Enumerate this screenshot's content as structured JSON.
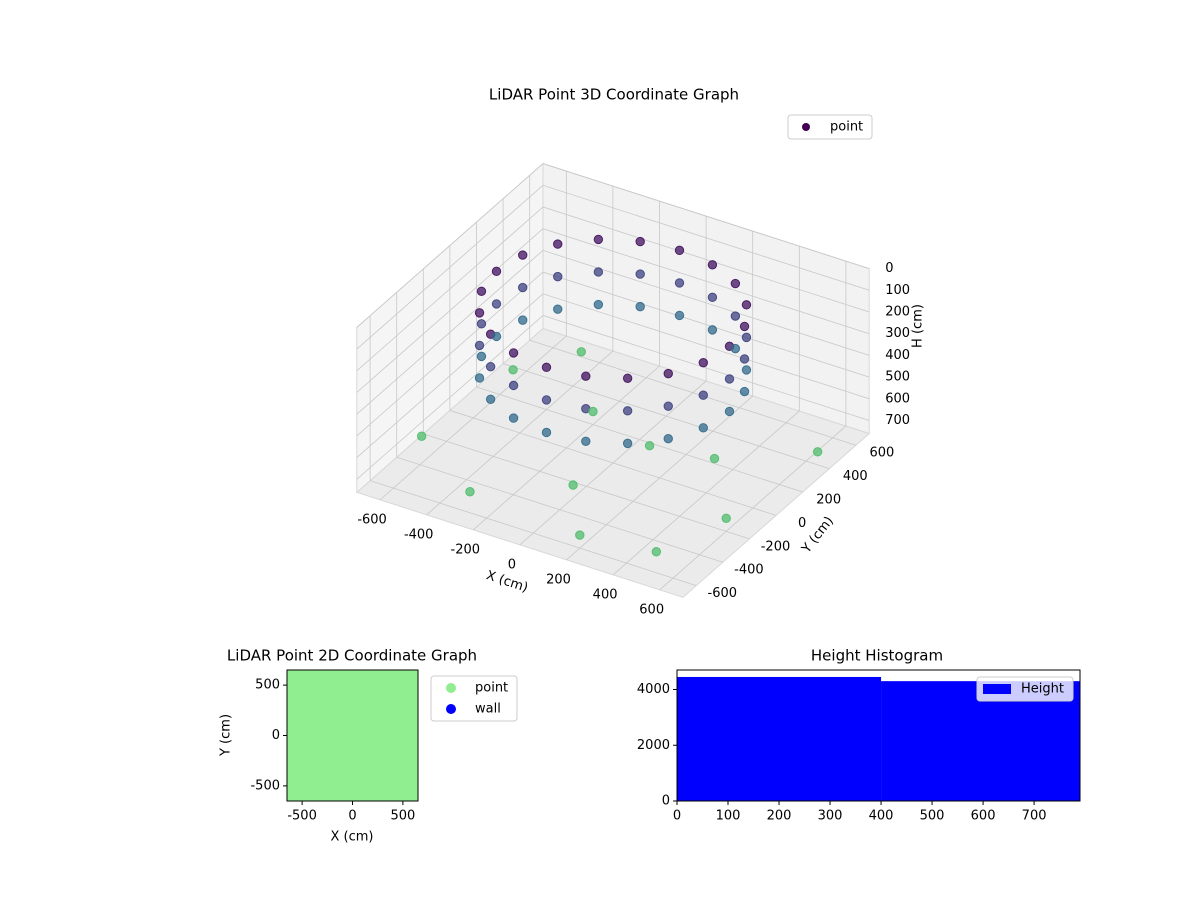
{
  "chart_data": [
    {
      "type": "scatter3d",
      "title": "LiDAR Point 3D Coordinate Graph",
      "x_label": "X (cm)",
      "y_label": "Y (cm)",
      "z_label": "H (cm)",
      "xlim": [
        -700,
        700
      ],
      "ylim": [
        -700,
        700
      ],
      "zlim": [
        760,
        0
      ],
      "xticks": [
        -600,
        -400,
        -200,
        0,
        200,
        400,
        600
      ],
      "yticks": [
        -600,
        -400,
        -200,
        0,
        200,
        400,
        600
      ],
      "zticks": [
        0,
        100,
        200,
        300,
        400,
        500,
        600,
        700
      ],
      "colormap": "viridis",
      "legend": "upper right",
      "series": [
        {
          "name": "point",
          "color": "#440154",
          "x": [
            500,
            476,
            405,
            294,
            155,
            0,
            -155,
            -294,
            -405,
            -476,
            -500,
            -476,
            -405,
            -294,
            -155,
            0,
            155,
            294,
            405,
            476,
            500,
            476,
            405,
            294,
            155,
            0,
            -155,
            -294,
            -405,
            -476,
            -500,
            -476,
            -405,
            -294,
            -155,
            0,
            155,
            294,
            405,
            476,
            500,
            476,
            405,
            294,
            155,
            0,
            -155,
            -294,
            -405,
            -476,
            -500,
            -476,
            -405,
            -294,
            -155,
            0,
            155,
            294,
            405,
            476,
            -600,
            -300,
            200,
            600,
            650,
            -650,
            100,
            -200,
            350,
            -450,
            500,
            0
          ],
          "y": [
            0,
            155,
            294,
            405,
            476,
            500,
            476,
            405,
            294,
            155,
            0,
            -155,
            -294,
            -405,
            -476,
            -500,
            -476,
            -405,
            -294,
            -155,
            0,
            155,
            294,
            405,
            476,
            500,
            476,
            405,
            294,
            155,
            0,
            -155,
            -294,
            -405,
            -476,
            -500,
            -476,
            -405,
            -294,
            -155,
            0,
            155,
            294,
            405,
            476,
            500,
            476,
            405,
            294,
            155,
            0,
            -155,
            -294,
            -405,
            -476,
            -500,
            -476,
            -405,
            -294,
            -155,
            300,
            -550,
            -600,
            -200,
            400,
            -300,
            100,
            200,
            150,
            550,
            -550,
            -300
          ],
          "h": [
            50,
            50,
            50,
            50,
            50,
            50,
            50,
            50,
            50,
            50,
            50,
            50,
            50,
            50,
            50,
            50,
            50,
            50,
            50,
            50,
            200,
            200,
            200,
            200,
            200,
            200,
            200,
            200,
            200,
            200,
            200,
            200,
            200,
            200,
            200,
            200,
            200,
            200,
            200,
            200,
            350,
            350,
            350,
            350,
            350,
            350,
            350,
            350,
            350,
            350,
            350,
            350,
            350,
            350,
            350,
            350,
            350,
            350,
            350,
            350,
            700,
            700,
            700,
            700,
            700,
            700,
            700,
            700,
            700,
            700,
            700,
            700
          ]
        }
      ]
    },
    {
      "type": "scatter",
      "title": "LiDAR Point 2D Coordinate Graph",
      "x_label": "X (cm)",
      "y_label": "Y (cm)",
      "xlim": [
        -650,
        650
      ],
      "ylim": [
        -650,
        650
      ],
      "xticks": [
        -500,
        0,
        500
      ],
      "yticks": [
        -500,
        0,
        500
      ],
      "legend": "outside right",
      "series": [
        {
          "name": "point",
          "color": "#90ee90",
          "x": [
            -600,
            -400,
            -200,
            0,
            200,
            400,
            600,
            -600,
            -400,
            -200,
            0,
            200,
            400,
            600,
            -600,
            -400,
            -200,
            0,
            200,
            400,
            600,
            -600,
            -400,
            -200,
            0,
            200,
            400,
            600,
            -600,
            -400,
            -200,
            0,
            200,
            400,
            600,
            -600,
            -400,
            -200,
            0,
            200,
            400,
            600,
            -600,
            -400,
            -200,
            0,
            200,
            400,
            600
          ],
          "y": [
            -600,
            -600,
            -600,
            -600,
            -600,
            -600,
            -600,
            -400,
            -400,
            -400,
            -400,
            -400,
            -400,
            -400,
            -200,
            -200,
            -200,
            -200,
            -200,
            -200,
            -200,
            0,
            0,
            0,
            0,
            0,
            0,
            0,
            200,
            200,
            200,
            200,
            200,
            200,
            200,
            400,
            400,
            400,
            400,
            400,
            400,
            400,
            600,
            600,
            600,
            600,
            600,
            600,
            600
          ]
        },
        {
          "name": "wall",
          "color": "#0000ff",
          "x": [],
          "y": []
        }
      ]
    },
    {
      "type": "histogram",
      "title": "Height Histogram",
      "bins": [
        0,
        400,
        790
      ],
      "counts": [
        4450,
        4300
      ],
      "xlim": [
        0,
        790
      ],
      "ylim": [
        0,
        4700
      ],
      "xticks": [
        0,
        100,
        200,
        300,
        400,
        500,
        600,
        700
      ],
      "yticks": [
        0,
        2000,
        4000
      ],
      "series_name": "Height",
      "color": "#0000ff",
      "legend": "upper right"
    }
  ]
}
